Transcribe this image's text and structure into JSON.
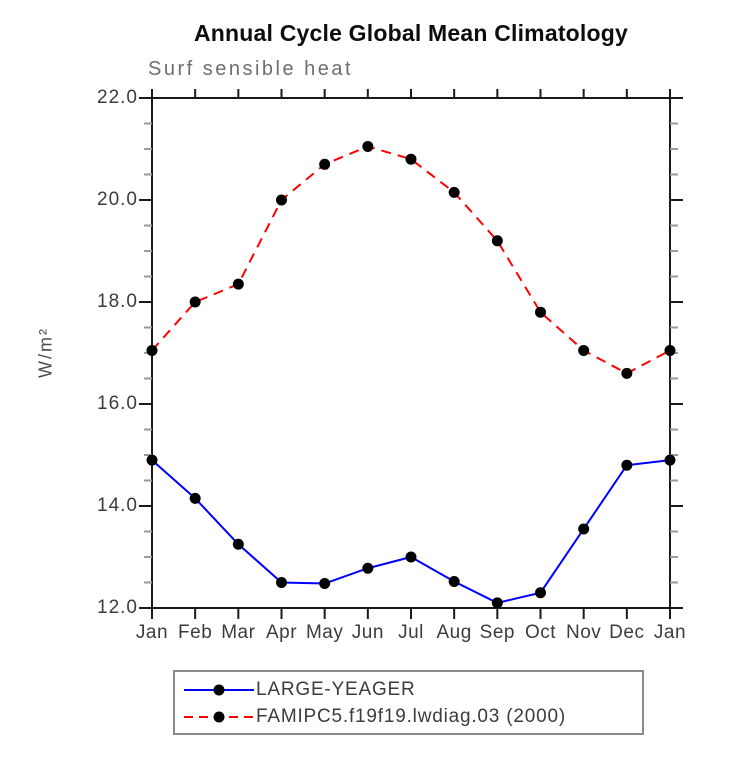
{
  "title": "Annual Cycle Global Mean Climatology",
  "subtitle": "Surf sensible heat",
  "ylabel": "W/m²",
  "legend": {
    "entries": [
      {
        "label": "LARGE-YEAGER",
        "color": "#0000ff",
        "dash": "solid"
      },
      {
        "label": "FAMIPC5.f19f19.lwdiag.03 (2000)",
        "color": "#ff0000",
        "dash": "dashed"
      }
    ]
  },
  "colors": {
    "axis": "#1a1a1a",
    "minor_tick": "#9a9a9a",
    "marker": "#000000",
    "series_blue": "#0000ff",
    "series_red": "#ff0000"
  },
  "chart_data": {
    "type": "line",
    "categories": [
      "Jan",
      "Feb",
      "Mar",
      "Apr",
      "May",
      "Jun",
      "Jul",
      "Aug",
      "Sep",
      "Oct",
      "Nov",
      "Dec",
      "Jan"
    ],
    "series": [
      {
        "name": "LARGE-YEAGER",
        "color": "#0000ff",
        "dash": "solid",
        "marker": "filled-circle",
        "values": [
          14.9,
          14.15,
          13.25,
          12.5,
          12.48,
          12.78,
          13.0,
          12.52,
          12.1,
          12.3,
          13.55,
          14.8,
          14.9
        ]
      },
      {
        "name": "FAMIPC5.f19f19.lwdiag.03 (2000)",
        "color": "#ff0000",
        "dash": "dashed",
        "marker": "filled-circle",
        "values": [
          17.05,
          18.0,
          18.35,
          20.0,
          20.7,
          21.05,
          20.8,
          20.15,
          19.2,
          17.8,
          17.05,
          16.6,
          17.05
        ]
      }
    ],
    "ylim": [
      12.0,
      22.0
    ],
    "ytick_major": [
      12.0,
      14.0,
      16.0,
      18.0,
      20.0,
      22.0
    ],
    "ytick_labels": [
      "12.0",
      "14.0",
      "16.0",
      "18.0",
      "20.0",
      "22.0"
    ],
    "ytick_minor_step": 0.5,
    "xlabel": "",
    "ylabel": "W/m²",
    "grid": false,
    "frame": "box",
    "legend_position": "bottom"
  }
}
